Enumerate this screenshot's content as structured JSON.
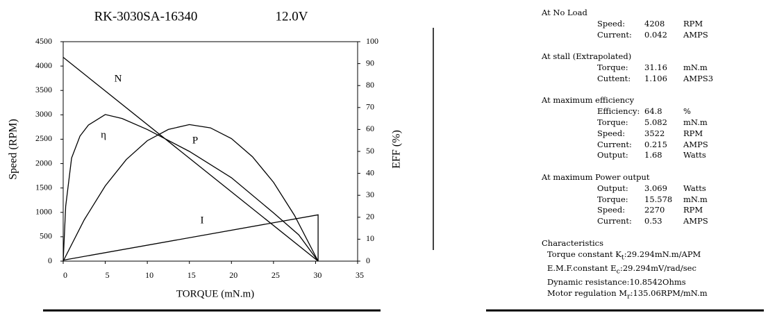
{
  "chart_data": {
    "type": "line",
    "title": "RK-3030SA-16340",
    "subtitle": "12.0V",
    "x_label": "TORQUE (mN.m)",
    "y_label": "Speed (RPM)",
    "y2_label": "EFF (%)",
    "xlim": [
      0,
      35
    ],
    "xticks": [
      0,
      5,
      10,
      15,
      20,
      25,
      30,
      35
    ],
    "ylim": [
      0,
      4500
    ],
    "yticks": [
      0,
      500,
      1000,
      1500,
      2000,
      2500,
      3000,
      3500,
      4000,
      4500
    ],
    "y2lim": [
      0,
      100
    ],
    "y2ticks": [
      0,
      10,
      20,
      30,
      40,
      50,
      60,
      70,
      80,
      90,
      100
    ],
    "series": [
      {
        "name": "N",
        "color": "#000000",
        "x": [
          0,
          30.3
        ],
        "values": [
          4180,
          0
        ]
      },
      {
        "name": "η",
        "color": "#000000",
        "axis": "y2",
        "x": [
          0,
          0.3,
          1,
          2,
          3,
          5,
          7,
          10,
          15,
          20,
          25,
          28,
          30.3
        ],
        "values": [
          0,
          25,
          47,
          57,
          62,
          66.8,
          65,
          60,
          50,
          38,
          22,
          12,
          0
        ]
      },
      {
        "name": "P",
        "color": "#000000",
        "x": [
          0,
          2.5,
          5,
          7.5,
          10,
          12.5,
          15,
          17.5,
          20,
          22.5,
          25,
          27.5,
          30.3
        ],
        "values": [
          0,
          848,
          1543,
          2083,
          2469,
          2700,
          2800,
          2733,
          2513,
          2141,
          1617,
          939,
          0
        ]
      },
      {
        "name": "I",
        "color": "#000000",
        "x": [
          0,
          30.3,
          30.3
        ],
        "values": [
          20,
          950,
          0
        ]
      }
    ]
  },
  "specs": [
    {
      "heading": "At No Load",
      "rows": [
        [
          "Speed:",
          "4208",
          "RPM"
        ],
        [
          "Current:",
          "0.042",
          "AMPS"
        ]
      ]
    },
    {
      "heading": "At stall (Extrapolated)",
      "rows": [
        [
          "Torque:",
          "31.16",
          "mN.m"
        ],
        [
          "Cuttent:",
          "1.106",
          "AMPS3"
        ]
      ]
    },
    {
      "heading": "At maximum efficiency",
      "rows": [
        [
          "Efficiency:",
          "64.8",
          "%"
        ],
        [
          "Torque:",
          "5.082",
          "mN.m"
        ],
        [
          "Speed:",
          "3522",
          "RPM"
        ],
        [
          "Current:",
          "0.215",
          "AMPS"
        ],
        [
          "Output:",
          "1.68",
          "Watts"
        ]
      ]
    },
    {
      "heading": "At maximum Power output",
      "rows": [
        [
          "Output:",
          "3.069",
          "Watts"
        ],
        [
          "Torque:",
          "15.578",
          "mN.m"
        ],
        [
          "Speed:",
          "2270",
          "RPM"
        ],
        [
          "Current:",
          "0.53",
          "AMPS"
        ]
      ]
    }
  ],
  "characteristics": {
    "heading": "Characteristics",
    "rows": [
      {
        "label": "Torque constant K",
        "sub": "t",
        "colon": ":",
        "value": "29.294",
        "unit": "mN.m/APM"
      },
      {
        "label": "E.M.F.constant E",
        "sub": "c",
        "colon": ":",
        "value": "29.294",
        "unit": "mV/rad/sec"
      },
      {
        "label": "Dynamic resistance:",
        "value": "10.8542",
        "unit": "Ohms"
      },
      {
        "label": "Motor regulation M",
        "sub": "r",
        "colon": ":",
        "value": "135.06",
        "unit": "RPM/mN.m"
      }
    ]
  }
}
